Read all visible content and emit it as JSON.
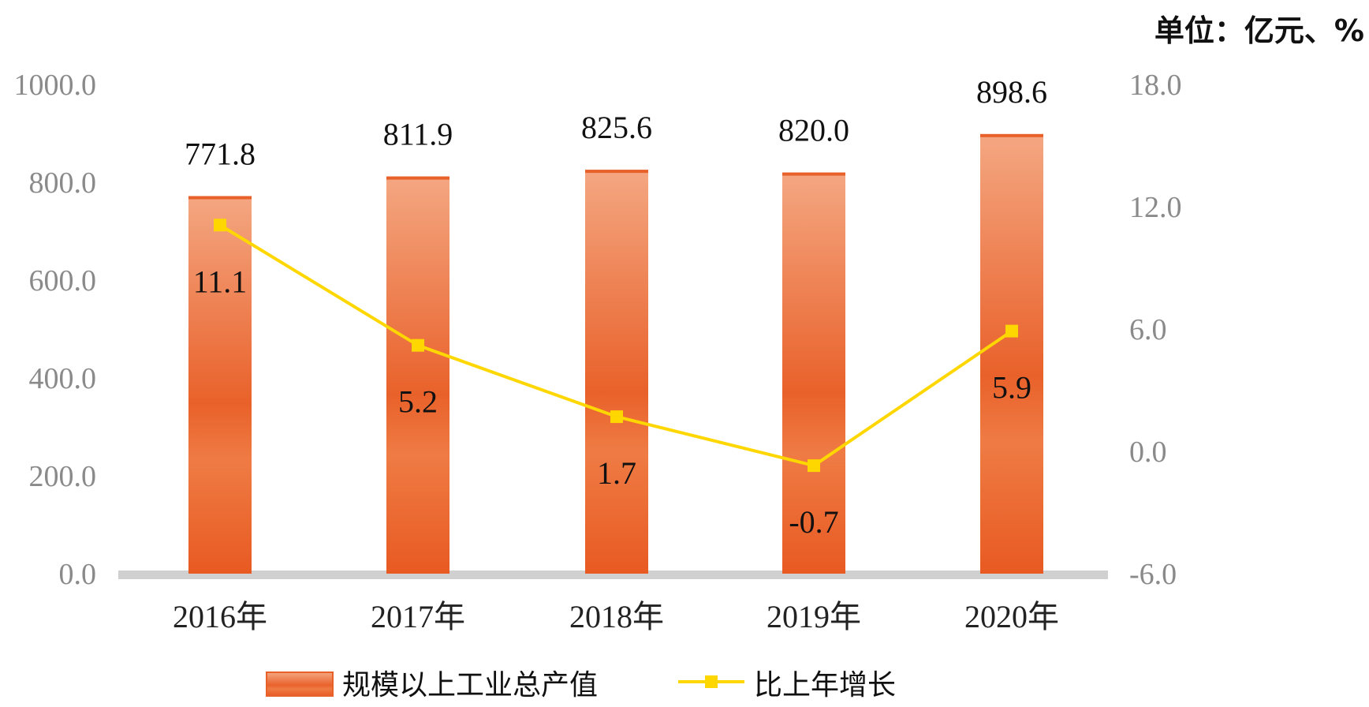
{
  "chart_data": {
    "type": "bar",
    "unit_label": "单位：亿元、%",
    "categories": [
      "2016年",
      "2017年",
      "2018年",
      "2019年",
      "2020年"
    ],
    "series": [
      {
        "name": "规模以上工业总产值",
        "type": "bar",
        "axis": "left",
        "values": [
          771.8,
          811.9,
          825.6,
          820.0,
          898.6
        ],
        "labels": [
          "771.8",
          "811.9",
          "825.6",
          "820.0",
          "898.6"
        ],
        "color": "#E8602A"
      },
      {
        "name": "比上年增长",
        "type": "line",
        "axis": "right",
        "values": [
          11.1,
          5.2,
          1.7,
          -0.7,
          5.9
        ],
        "labels": [
          "11.1",
          "5.2",
          "1.7",
          "-0.7",
          "5.9"
        ],
        "color": "#FFD700"
      }
    ],
    "y_left": {
      "range": [
        0,
        1000
      ],
      "ticks": [
        "0.0",
        "200.0",
        "400.0",
        "600.0",
        "800.0",
        "1000.0"
      ]
    },
    "y_right": {
      "range": [
        -6,
        18
      ],
      "ticks": [
        "-6.0",
        "0.0",
        "6.0",
        "12.0",
        "18.0"
      ]
    },
    "legend_position": "bottom",
    "grid": false
  }
}
